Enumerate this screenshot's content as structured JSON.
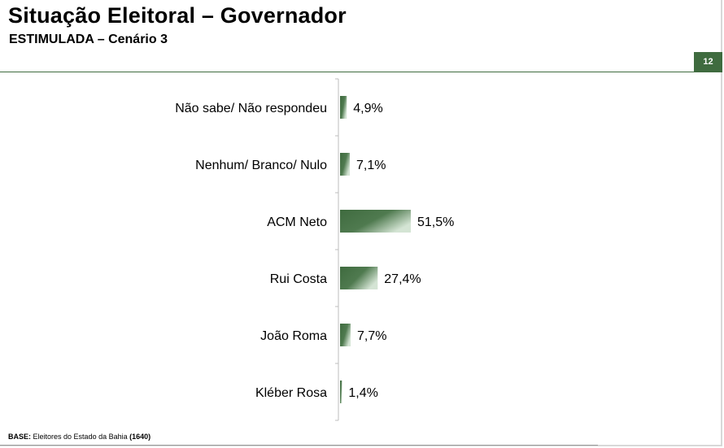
{
  "header": {
    "title": "Situação Eleitoral – Governador",
    "subtitle": "ESTIMULADA – Cenário 3",
    "page_number": "12"
  },
  "footer": {
    "base_label": "BASE:",
    "base_text": "Eleitores do Estado da Bahia",
    "base_count": "(1640)"
  },
  "colors": {
    "bar_dark": "#3f6b3f",
    "bar_light": "#cfe0cf",
    "accent": "#3f6b3f"
  },
  "chart_data": {
    "type": "bar",
    "orientation": "horizontal",
    "categories": [
      "Não sabe/ Não respondeu",
      "Nenhum/ Branco/ Nulo",
      "ACM Neto",
      "Rui Costa",
      "João Roma",
      "Kléber Rosa"
    ],
    "values": [
      4.9,
      7.1,
      51.5,
      27.4,
      7.7,
      1.4
    ],
    "value_labels": [
      "4,9%",
      "7,1%",
      "51,5%",
      "27,4%",
      "7,7%",
      "1,4%"
    ],
    "unit": "%",
    "xlim": [
      0,
      100
    ],
    "grid": false,
    "legend": "none"
  }
}
